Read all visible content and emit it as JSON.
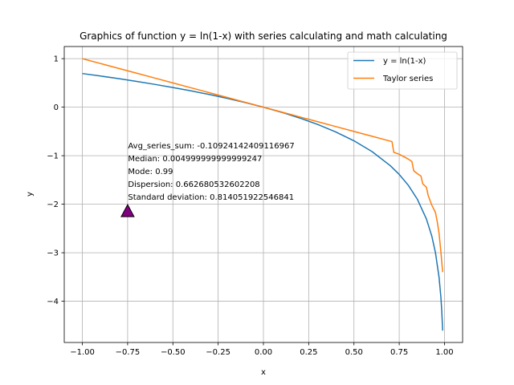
{
  "chart_data": {
    "type": "line",
    "title": "Graphics of function y = ln(1-x) with series calculating and math calculating",
    "xlabel": "x",
    "ylabel": "y",
    "xlim": [
      -1.1,
      1.1
    ],
    "ylim": [
      -4.85,
      1.25
    ],
    "xticks": [
      -1.0,
      -0.75,
      -0.5,
      -0.25,
      0.0,
      0.25,
      0.5,
      0.75,
      1.0
    ],
    "xtick_labels": [
      "−1.00",
      "−0.75",
      "−0.50",
      "−0.25",
      "0.00",
      "0.25",
      "0.50",
      "0.75",
      "1.00"
    ],
    "yticks": [
      1,
      0,
      -1,
      -2,
      -3,
      -4
    ],
    "ytick_labels": [
      "1",
      "0",
      "−1",
      "−2",
      "−3",
      "−4"
    ],
    "grid": true,
    "legend_position": "top-right",
    "series": [
      {
        "name": "y = ln(1-x)",
        "color": "#1f77b4",
        "x": [
          -1.0,
          -0.9,
          -0.8,
          -0.7,
          -0.6,
          -0.5,
          -0.4,
          -0.3,
          -0.2,
          -0.1,
          0.0,
          0.1,
          0.2,
          0.3,
          0.4,
          0.5,
          0.6,
          0.7,
          0.75,
          0.8,
          0.85,
          0.9,
          0.93,
          0.95,
          0.97,
          0.98,
          0.985,
          0.99
        ],
        "y": [
          0.693,
          0.642,
          0.588,
          0.531,
          0.47,
          0.405,
          0.336,
          0.262,
          0.182,
          0.095,
          0.0,
          -0.105,
          -0.223,
          -0.357,
          -0.511,
          -0.693,
          -0.916,
          -1.204,
          -1.386,
          -1.609,
          -1.897,
          -2.303,
          -2.659,
          -2.996,
          -3.507,
          -3.912,
          -4.2,
          -4.605
        ]
      },
      {
        "name": "Taylor series",
        "color": "#ff7f0e",
        "x": [
          -1.0,
          -0.9,
          -0.8,
          -0.7,
          -0.6,
          -0.5,
          -0.4,
          -0.3,
          -0.2,
          -0.1,
          0.0,
          0.1,
          0.2,
          0.3,
          0.4,
          0.5,
          0.6,
          0.7,
          0.71,
          0.72,
          0.75,
          0.8,
          0.82,
          0.83,
          0.85,
          0.87,
          0.88,
          0.9,
          0.91,
          0.93,
          0.95,
          0.96,
          0.97,
          0.98,
          0.99
        ],
        "y": [
          1.0,
          0.9,
          0.8,
          0.7,
          0.6,
          0.5,
          0.4,
          0.3,
          0.2,
          0.1,
          0.0,
          -0.1,
          -0.2,
          -0.3,
          -0.4,
          -0.5,
          -0.6,
          -0.7,
          -0.71,
          -0.93,
          -0.97,
          -1.07,
          -1.12,
          -1.31,
          -1.37,
          -1.42,
          -1.58,
          -1.65,
          -1.82,
          -2.02,
          -2.17,
          -2.36,
          -2.6,
          -2.98,
          -3.4
        ]
      }
    ],
    "annotation": {
      "lines": [
        "Avg_series_sum: -0.10924142409116967",
        "Median: 0.004999999999999247",
        "Mode: 0.99",
        "Dispersion: 0.662680532602208",
        "Standard deviation: 0.814051922546841"
      ],
      "marker": {
        "x": -0.75,
        "y": -2.14,
        "shape": "triangle",
        "color": "#800080"
      },
      "text_anchor": {
        "x": -0.75,
        "y": -0.85
      }
    }
  }
}
